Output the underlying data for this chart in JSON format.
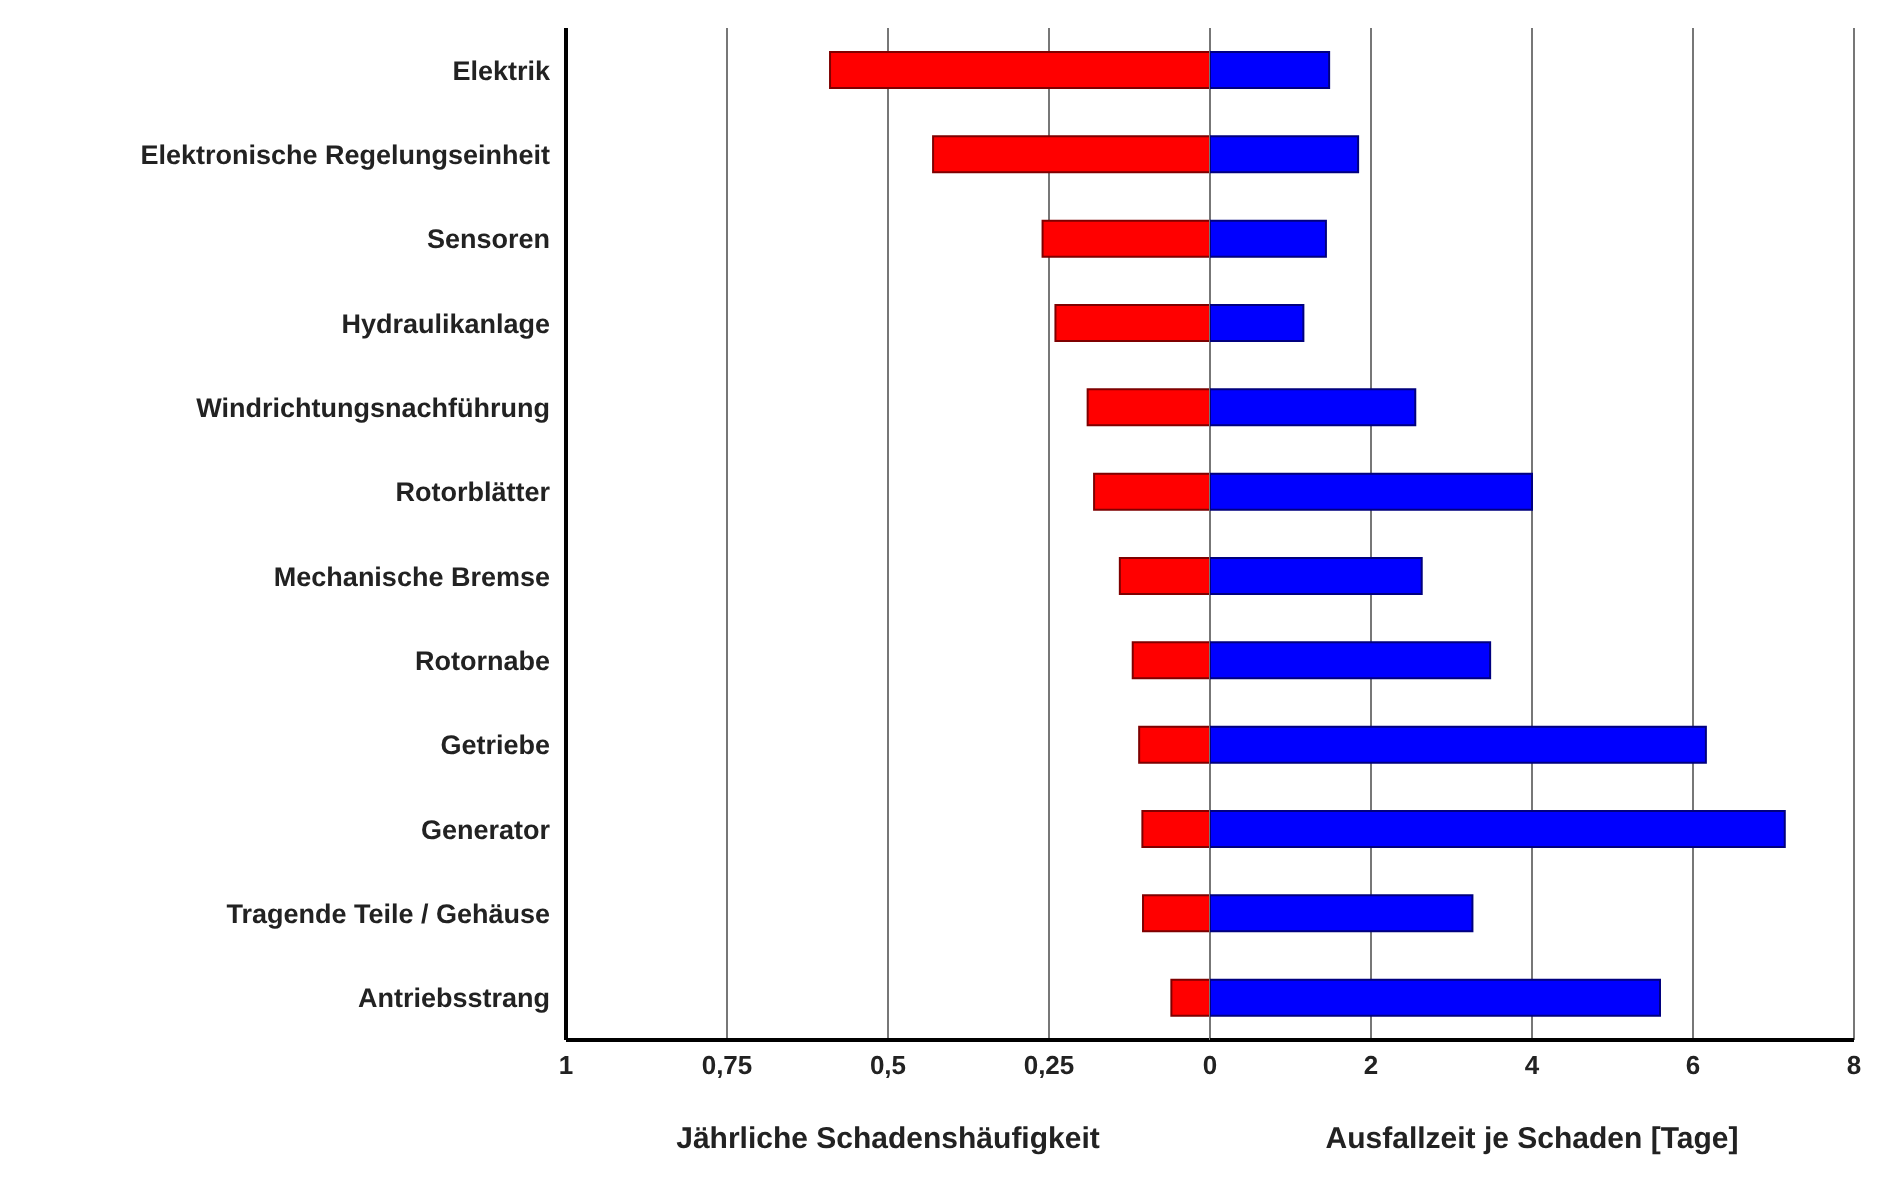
{
  "chart_data": [
    {
      "type": "bar",
      "orientation": "horizontal",
      "xlabel": "Jährliche Schadenshäufigkeit",
      "categories": [
        "Elektrik",
        "Elektronische Regelungseinheit",
        "Sensoren",
        "Hydraulikanlage",
        "Windrichtungsnachführung",
        "Rotorblätter",
        "Mechanische Bremse",
        "Rotornabe",
        "Getriebe",
        "Generator",
        "Tragende Teile / Gehäuse",
        "Antriebsstrang"
      ],
      "series": [
        {
          "color": "#ff0000",
          "values": [
            0.59,
            0.43,
            0.26,
            0.24,
            0.19,
            0.18,
            0.14,
            0.12,
            0.11,
            0.105,
            0.104,
            0.06
          ]
        }
      ],
      "xlim": [
        1,
        0
      ],
      "xticks": [
        1,
        {
          "value": 0.75,
          "label": "0,75"
        },
        {
          "value": 0.5,
          "label": "0,5"
        },
        {
          "value": 0.25,
          "label": "0,25"
        }
      ],
      "grid": "x",
      "legend": false
    },
    {
      "type": "bar",
      "orientation": "horizontal",
      "xlabel": "Ausfallzeit je Schaden [Tage]",
      "categories": [
        null,
        null,
        null,
        null,
        null,
        null,
        null,
        null,
        null,
        null,
        null,
        null
      ],
      "series": [
        {
          "color": "#0000ff",
          "values": [
            1.48,
            1.84,
            1.44,
            1.16,
            2.55,
            4.0,
            2.63,
            3.48,
            6.16,
            7.14,
            3.26,
            5.59
          ]
        }
      ],
      "xlim": [
        0,
        8
      ],
      "xticks": [
        0,
        2,
        4,
        6,
        8
      ],
      "grid": "x",
      "legend": false,
      "tick_labels": "x"
    }
  ]
}
